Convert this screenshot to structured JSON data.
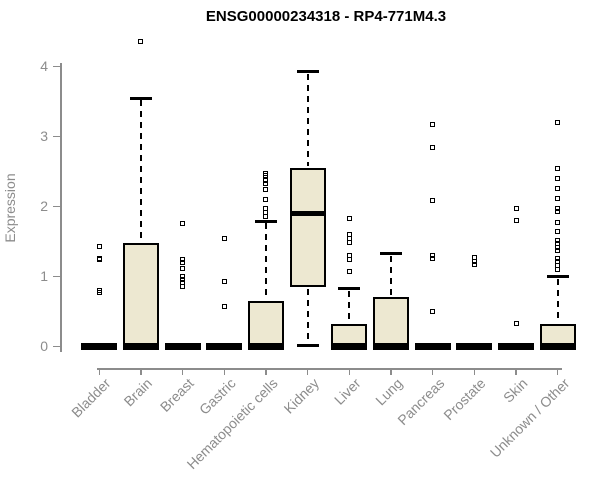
{
  "chart_data": {
    "type": "boxplot",
    "title": "ENSG00000234318 - RP4-771M4.3",
    "ylabel": "Expression",
    "xlabel": "",
    "yticks": [
      0,
      1,
      2,
      3,
      4
    ],
    "ylim": [
      0,
      4.45
    ],
    "grid": false,
    "legend": false,
    "categories": [
      "Bladder",
      "Brain",
      "Breast",
      "Gastric",
      "Hematopoietic cells",
      "Kidney",
      "Liver",
      "Lung",
      "Pancreas",
      "Prostate",
      "Skin",
      "Unknown / Other"
    ],
    "series": [
      {
        "category": "Bladder",
        "q1": 0,
        "median": 0,
        "q3": 0,
        "whisker_low": null,
        "whisker_high": null,
        "outliers": [
          1.43,
          1.26,
          1.24,
          0.8,
          0.77
        ]
      },
      {
        "category": "Brain",
        "q1": 0,
        "median": 0,
        "q3": 1.48,
        "whisker_low": null,
        "whisker_high": 3.55,
        "outliers": [
          4.36
        ]
      },
      {
        "category": "Breast",
        "q1": 0,
        "median": 0,
        "q3": 0,
        "whisker_low": null,
        "whisker_high": null,
        "outliers": [
          1.76,
          1.24,
          1.2,
          1.12,
          1.0,
          0.96,
          0.92,
          0.86
        ]
      },
      {
        "category": "Gastric",
        "q1": 0,
        "median": 0,
        "q3": 0,
        "whisker_low": null,
        "whisker_high": null,
        "outliers": [
          1.55,
          0.93,
          0.57
        ]
      },
      {
        "category": "Hematopoietic cells",
        "q1": 0,
        "median": 0,
        "q3": 0.66,
        "whisker_low": null,
        "whisker_high": 1.79,
        "outliers": [
          2.48,
          2.44,
          2.38,
          2.33,
          2.25,
          2.1,
          1.97,
          1.92,
          1.86
        ]
      },
      {
        "category": "Kidney",
        "q1": 0.85,
        "median": 1.91,
        "q3": 2.55,
        "whisker_low": 0.02,
        "whisker_high": 3.93,
        "outliers": []
      },
      {
        "category": "Liver",
        "q1": 0,
        "median": 0,
        "q3": 0.33,
        "whisker_low": null,
        "whisker_high": 0.83,
        "outliers": [
          1.83,
          1.6,
          1.55,
          1.49,
          1.3,
          1.25,
          1.07
        ]
      },
      {
        "category": "Lung",
        "q1": 0,
        "median": 0,
        "q3": 0.71,
        "whisker_low": null,
        "whisker_high": 1.33,
        "outliers": []
      },
      {
        "category": "Pancreas",
        "q1": 0,
        "median": 0,
        "q3": 0,
        "whisker_low": null,
        "whisker_high": null,
        "outliers": [
          3.17,
          2.84,
          2.09,
          1.3,
          1.26,
          0.5
        ]
      },
      {
        "category": "Prostate",
        "q1": 0,
        "median": 0,
        "q3": 0,
        "whisker_low": null,
        "whisker_high": null,
        "outliers": [
          1.27,
          1.22,
          1.17
        ]
      },
      {
        "category": "Skin",
        "q1": 0,
        "median": 0,
        "q3": 0,
        "whisker_low": null,
        "whisker_high": null,
        "outliers": [
          1.98,
          1.8,
          0.33
        ]
      },
      {
        "category": "Unknown / Other",
        "q1": 0,
        "median": 0,
        "q3": 0.33,
        "whisker_low": null,
        "whisker_high": 1.0,
        "outliers": [
          3.21,
          2.55,
          2.41,
          2.26,
          2.12,
          1.97,
          1.93,
          1.77,
          1.64,
          1.52,
          1.47,
          1.42,
          1.37,
          1.26,
          1.22,
          1.16,
          1.11
        ]
      }
    ],
    "colors": {
      "box_fill": "#EDE8D1",
      "box_border": "#000000",
      "median": "#000000",
      "outlier": "#000000",
      "axis": "#8C8C8C",
      "labels": "#8C8C8C",
      "title": "#000000",
      "background": "#FFFFFF"
    }
  }
}
